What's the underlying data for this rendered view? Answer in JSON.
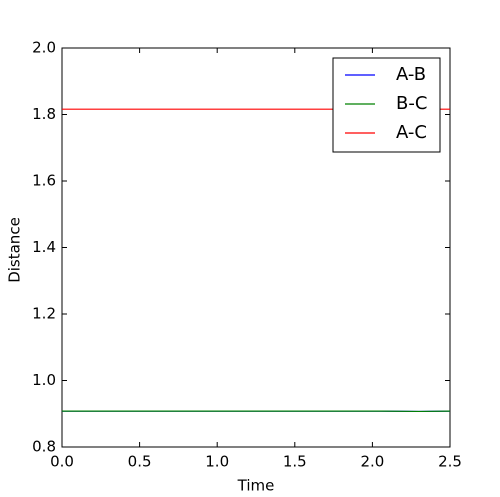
{
  "chart_data": {
    "type": "line",
    "xlabel": "Time",
    "ylabel": "Distance",
    "x": [
      0,
      0.5,
      1,
      1.5,
      2,
      2.3,
      2.5
    ],
    "series": [
      {
        "name": "A-B",
        "color": "#0000ff",
        "values": [
          0.908,
          0.908,
          0.908,
          0.908,
          0.908,
          0.907,
          0.908
        ]
      },
      {
        "name": "B-C",
        "color": "#008000",
        "values": [
          0.908,
          0.908,
          0.908,
          0.908,
          0.908,
          0.907,
          0.908
        ]
      },
      {
        "name": "A-C",
        "color": "#ff0000",
        "values": [
          1.816,
          1.816,
          1.816,
          1.816,
          1.816,
          1.816,
          1.816
        ]
      }
    ],
    "xlim": [
      0,
      2.5
    ],
    "xticks": [
      {
        "value": 0,
        "label": "0.0"
      },
      0.5,
      {
        "value": 1,
        "label": "1.0"
      },
      1.5,
      {
        "value": 2,
        "label": "2.0"
      },
      2.5
    ],
    "ylim": [
      0.8,
      2.0
    ],
    "yticks": [
      0.8,
      {
        "value": 1,
        "label": "1.0"
      },
      1.2,
      1.4,
      1.6,
      1.8,
      {
        "value": 2,
        "label": "2.0"
      }
    ],
    "legend": "upper right"
  }
}
